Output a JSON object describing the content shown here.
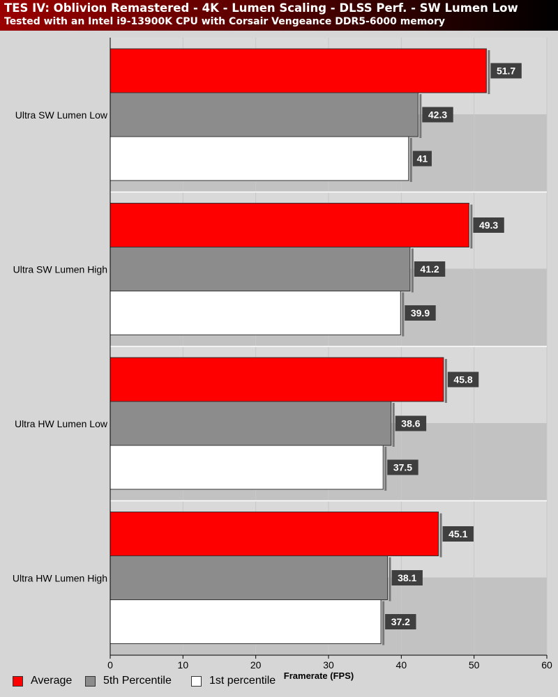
{
  "header": {
    "title": "TES IV: Oblivion Remastered - 4K - Lumen Scaling - DLSS Perf. - SW Lumen Low",
    "subtitle": "Tested with an Intel i9-13900K CPU with Corsair Vengeance DDR5-6000 memory"
  },
  "chart_data": {
    "type": "bar",
    "orientation": "horizontal",
    "categories": [
      "Ultra SW Lumen Low",
      "Ultra SW Lumen High",
      "Ultra HW Lumen Low",
      "Ultra HW Lumen High"
    ],
    "series": [
      {
        "name": "Average",
        "color": "#ff0000",
        "values": [
          51.7,
          49.3,
          45.8,
          45.1
        ]
      },
      {
        "name": "5th Percentile",
        "color": "#8c8c8c",
        "values": [
          42.3,
          41.2,
          38.6,
          38.1
        ]
      },
      {
        "name": "1st percentile",
        "color": "#ffffff",
        "values": [
          41,
          39.9,
          37.5,
          37.2
        ]
      }
    ],
    "xlabel": "Framerate (FPS)",
    "xlim": [
      0,
      60
    ],
    "xticks": [
      "0",
      "10",
      "20",
      "30",
      "40",
      "50",
      "60"
    ],
    "grid": true,
    "legend": "bottom"
  }
}
